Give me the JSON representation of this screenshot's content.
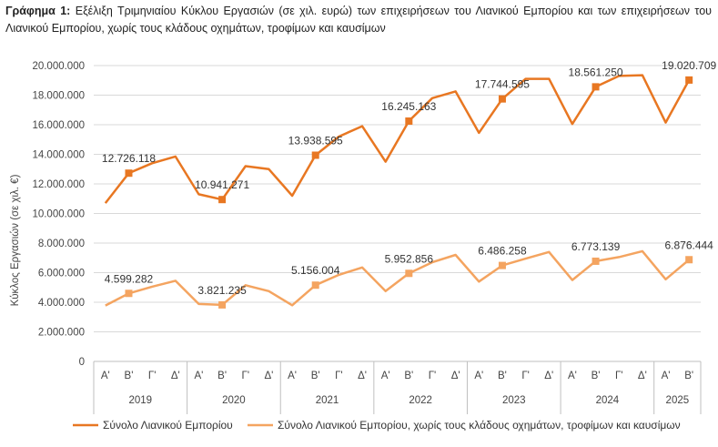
{
  "figure": {
    "label": "Γράφημα 1:",
    "caption": "Εξέλιξη Τριμηνιαίου Κύκλου Εργασιών (σε χιλ. ευρώ) των επιχειρήσεων του Λιανικού Εμπορίου και των επιχειρήσεων του Λιανικού Εμπορίου, χωρίς τους κλάδους οχημάτων, τροφίμων και καυσίμων"
  },
  "chart_data": {
    "type": "line",
    "title": "",
    "ylabel": "Κύκλος Εργασιών (σε χιλ. €)",
    "xlabel": "",
    "ylim": [
      0,
      20000000
    ],
    "yticks": [
      0,
      2000000,
      4000000,
      6000000,
      8000000,
      10000000,
      12000000,
      14000000,
      16000000,
      18000000,
      20000000
    ],
    "ytick_labels": [
      "0",
      "2.000.000",
      "4.000.000",
      "6.000.000",
      "8.000.000",
      "10.000.000",
      "12.000.000",
      "14.000.000",
      "16.000.000",
      "18.000.000",
      "20.000.000"
    ],
    "years": [
      {
        "year": "2019",
        "quarters": [
          "Α'",
          "Β'",
          "Γ'",
          "Δ'"
        ]
      },
      {
        "year": "2020",
        "quarters": [
          "Α'",
          "Β'",
          "Γ'",
          "Δ'"
        ]
      },
      {
        "year": "2021",
        "quarters": [
          "Α'",
          "Β'",
          "Γ'",
          "Δ'"
        ]
      },
      {
        "year": "2022",
        "quarters": [
          "Α'",
          "Β'",
          "Γ'",
          "Δ'"
        ]
      },
      {
        "year": "2023",
        "quarters": [
          "Α'",
          "Β'",
          "Γ'",
          "Δ'"
        ]
      },
      {
        "year": "2024",
        "quarters": [
          "Α'",
          "Β'",
          "Γ'",
          "Δ'"
        ]
      },
      {
        "year": "2025",
        "quarters": [
          "Α'",
          "Β'"
        ]
      }
    ],
    "grid": true,
    "legend_position": "bottom",
    "series": [
      {
        "name": "Σύνολο Λιανικού Εμπορίου",
        "color": "#E87722",
        "values": [
          10700000,
          12726118,
          13400000,
          13850000,
          11300000,
          10941271,
          13200000,
          13000000,
          11200000,
          13938595,
          15200000,
          15900000,
          13500000,
          16245163,
          17800000,
          18250000,
          15450000,
          17744595,
          19100000,
          19100000,
          16050000,
          18561250,
          19300000,
          19350000,
          16150000,
          19020709
        ],
        "markers": [
          1,
          5,
          9,
          13,
          17,
          21,
          25
        ],
        "labels": [
          "12.726.118",
          "10.941.271",
          "13.938.595",
          "16.245.163",
          "17.744.595",
          "18.561.250",
          "19.020.709"
        ]
      },
      {
        "name": "Σύνολο Λιανικού Εμπορίου, χωρίς τους κλάδους οχημάτων, τροφίμων και καυσίμων",
        "color": "#F4A460",
        "values": [
          3780000,
          4599282,
          5050000,
          5450000,
          3880000,
          3821235,
          5150000,
          4750000,
          3800000,
          5156004,
          5850000,
          6350000,
          4750000,
          5952856,
          6700000,
          7200000,
          5400000,
          6486258,
          6950000,
          7400000,
          5500000,
          6773139,
          7050000,
          7450000,
          5550000,
          6876444
        ],
        "markers": [
          1,
          5,
          9,
          13,
          17,
          21,
          25
        ],
        "labels": [
          "4.599.282",
          "3.821.235",
          "5.156.004",
          "5.952.856",
          "6.486.258",
          "6.773.139",
          "6.876.444"
        ]
      }
    ]
  }
}
